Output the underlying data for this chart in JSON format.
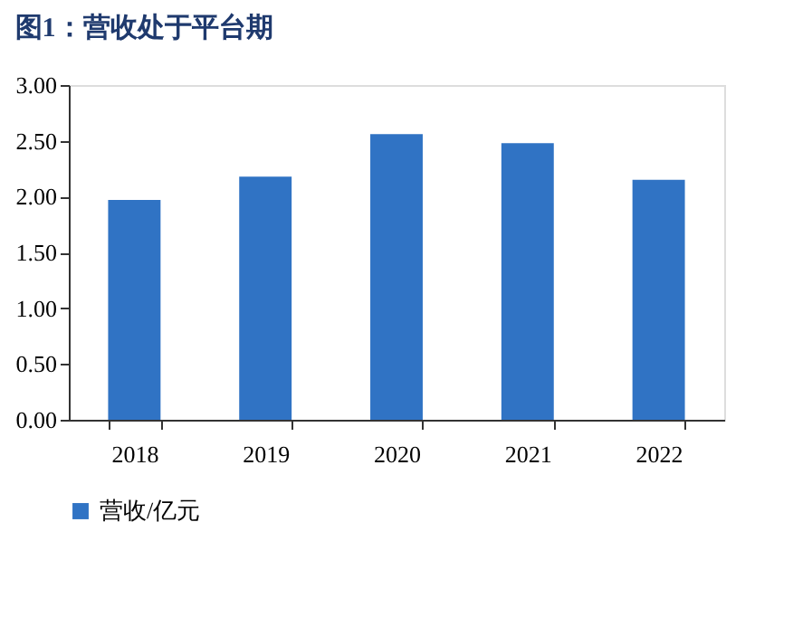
{
  "chart_data": {
    "type": "bar",
    "title": "图1：营收处于平台期",
    "categories": [
      "2018",
      "2019",
      "2020",
      "2021",
      "2022"
    ],
    "series": [
      {
        "name": "营收/亿元",
        "color": "#3073c4",
        "values": [
          1.97,
          2.18,
          2.56,
          2.48,
          2.15
        ]
      }
    ],
    "ylim": [
      0,
      3
    ],
    "yticks": [
      {
        "value": 0,
        "label": "0.00"
      },
      {
        "value": 0.5,
        "label": "0.50"
      },
      {
        "value": 1,
        "label": "1.00"
      },
      {
        "value": 1.5,
        "label": "1.50"
      },
      {
        "value": 2,
        "label": "2.00"
      },
      {
        "value": 2.5,
        "label": "2.50"
      },
      {
        "value": 3,
        "label": "3.00"
      }
    ],
    "grid": false,
    "legend": "bottom"
  }
}
